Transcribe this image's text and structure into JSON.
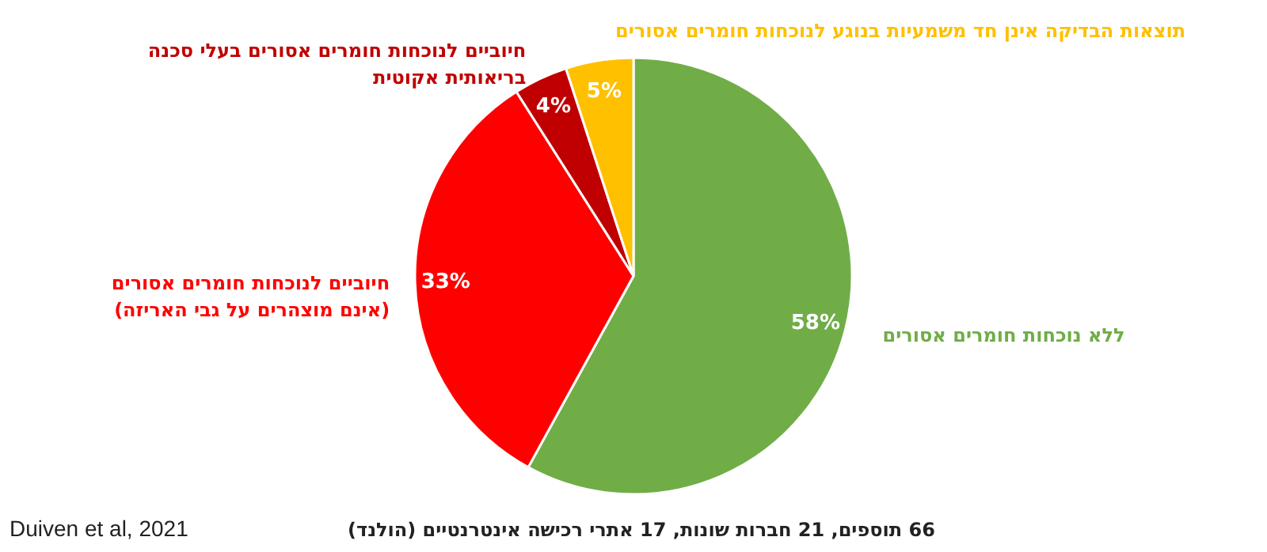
{
  "chart_data": {
    "type": "pie",
    "categories": [
      "ללא נוכחות חומרים אסורים",
      "חיוביים לנוכחות חומרים אסורים\n(אינם מוצהרים על גבי האריזה)",
      "חיוביים לנוכחות חומרים אסורים בעלי סכנה\nבריאותית אקוטית",
      "תוצאות הבדיקה אינן חד משמעיות בנוגע לנוכחות חומרים אסורים"
    ],
    "values": [
      58,
      33,
      4,
      5
    ],
    "colors": [
      "#70ad47",
      "#ff0000",
      "#c00000",
      "#ffc000"
    ],
    "value_labels": [
      "58%",
      "33%",
      "4%",
      "5%"
    ],
    "annotations": [
      "66 תוספים, 21 חברות שונות, 17 אתרי רכישה אינטרנטיים (הולנד)",
      "Duiven et al, 2021"
    ]
  }
}
